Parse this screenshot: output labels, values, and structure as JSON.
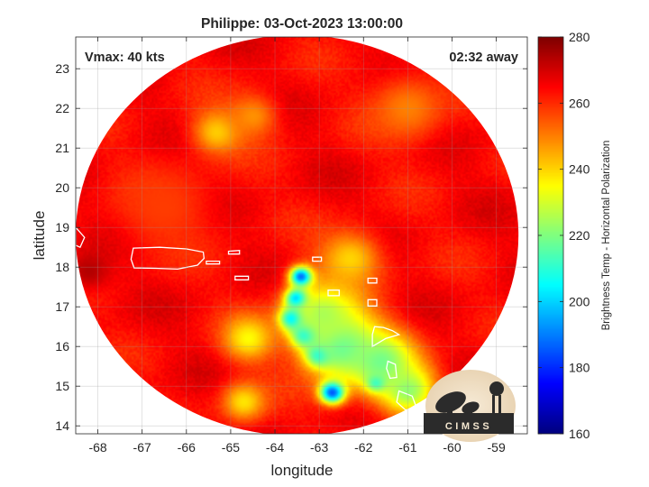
{
  "chart_data": {
    "type": "heatmap",
    "title": "Philippe: 03-Oct-2023 13:00:00",
    "xlabel": "longitude",
    "ylabel": "latitude",
    "xlim": [
      -68.5,
      -58.3
    ],
    "ylim": [
      13.8,
      23.8
    ],
    "x_ticks": [
      -68,
      -67,
      -66,
      -65,
      -64,
      -63,
      -62,
      -61,
      -60,
      -59
    ],
    "y_ticks": [
      14,
      15,
      16,
      17,
      18,
      19,
      20,
      21,
      22,
      23
    ],
    "grid": true,
    "annotations": {
      "vmax": "Vmax: 40 kts",
      "time_away": "02:32 away"
    },
    "colorbar": {
      "label": "Brightness Temp - Horizontal Polarization",
      "range": [
        160,
        280
      ],
      "ticks": [
        160,
        180,
        200,
        220,
        240,
        260,
        280
      ],
      "colormap": "jet"
    },
    "swath": {
      "center_lon": -63.5,
      "center_lat": 18.8,
      "radius_deg_lon": 5.0,
      "radius_deg_lat": 5.05
    },
    "background_value": 265,
    "features": [
      {
        "lon": -63.4,
        "lat": 17.75,
        "value": 175,
        "spread": 0.18
      },
      {
        "lon": -63.5,
        "lat": 17.2,
        "value": 178,
        "spread": 0.18
      },
      {
        "lon": -63.6,
        "lat": 16.7,
        "value": 182,
        "spread": 0.2
      },
      {
        "lon": -63.3,
        "lat": 16.3,
        "value": 185,
        "spread": 0.22
      },
      {
        "lon": -63.0,
        "lat": 15.8,
        "value": 192,
        "spread": 0.2
      },
      {
        "lon": -62.7,
        "lat": 14.85,
        "value": 178,
        "spread": 0.2
      },
      {
        "lon": -61.7,
        "lat": 15.1,
        "value": 190,
        "spread": 0.15
      },
      {
        "lon": -62.5,
        "lat": 16.0,
        "value": 215,
        "spread": 0.6
      },
      {
        "lon": -61.6,
        "lat": 15.6,
        "value": 218,
        "spread": 0.55
      },
      {
        "lon": -62.9,
        "lat": 16.8,
        "value": 225,
        "spread": 0.6
      },
      {
        "lon": -61.0,
        "lat": 14.9,
        "value": 222,
        "spread": 0.45
      },
      {
        "lon": -64.6,
        "lat": 16.2,
        "value": 235,
        "spread": 0.4
      },
      {
        "lon": -64.7,
        "lat": 14.6,
        "value": 238,
        "spread": 0.35
      },
      {
        "lon": -62.3,
        "lat": 18.2,
        "value": 240,
        "spread": 0.5
      },
      {
        "lon": -65.3,
        "lat": 21.4,
        "value": 240,
        "spread": 0.4
      },
      {
        "lon": -64.5,
        "lat": 21.8,
        "value": 248,
        "spread": 0.4
      },
      {
        "lon": -61.0,
        "lat": 22.0,
        "value": 250,
        "spread": 0.6
      },
      {
        "lon": -66.5,
        "lat": 19.5,
        "value": 258,
        "spread": 0.8
      },
      {
        "lon": -68.2,
        "lat": 17.9,
        "value": 274,
        "spread": 0.35
      }
    ],
    "coastlines": [
      {
        "name": "puerto-rico",
        "points": [
          [
            -67.2,
            18.48
          ],
          [
            -66.6,
            18.5
          ],
          [
            -66.0,
            18.46
          ],
          [
            -65.62,
            18.38
          ],
          [
            -65.6,
            18.22
          ],
          [
            -65.75,
            18.05
          ],
          [
            -66.2,
            17.95
          ],
          [
            -66.7,
            17.97
          ],
          [
            -67.18,
            17.98
          ],
          [
            -67.25,
            18.2
          ]
        ]
      },
      {
        "name": "hispaniola-tip",
        "points": [
          [
            -68.5,
            19.0
          ],
          [
            -68.3,
            18.75
          ],
          [
            -68.4,
            18.5
          ],
          [
            -68.5,
            18.55
          ]
        ]
      },
      {
        "name": "vieques",
        "points": [
          [
            -65.55,
            18.15
          ],
          [
            -65.25,
            18.15
          ],
          [
            -65.25,
            18.08
          ],
          [
            -65.55,
            18.08
          ]
        ]
      },
      {
        "name": "virgin-islands",
        "points": [
          [
            -65.05,
            18.4
          ],
          [
            -64.8,
            18.42
          ],
          [
            -64.8,
            18.33
          ],
          [
            -65.05,
            18.33
          ]
        ]
      },
      {
        "name": "anguilla",
        "points": [
          [
            -63.15,
            18.25
          ],
          [
            -62.95,
            18.25
          ],
          [
            -62.95,
            18.15
          ],
          [
            -63.15,
            18.15
          ]
        ]
      },
      {
        "name": "st-croix",
        "points": [
          [
            -64.9,
            17.77
          ],
          [
            -64.6,
            17.77
          ],
          [
            -64.6,
            17.68
          ],
          [
            -64.9,
            17.68
          ]
        ]
      },
      {
        "name": "antigua",
        "points": [
          [
            -61.9,
            17.18
          ],
          [
            -61.7,
            17.18
          ],
          [
            -61.7,
            17.02
          ],
          [
            -61.9,
            17.02
          ]
        ]
      },
      {
        "name": "st-kitts",
        "points": [
          [
            -62.8,
            17.42
          ],
          [
            -62.55,
            17.42
          ],
          [
            -62.55,
            17.28
          ],
          [
            -62.8,
            17.28
          ]
        ]
      },
      {
        "name": "barbuda",
        "points": [
          [
            -61.9,
            17.72
          ],
          [
            -61.7,
            17.72
          ],
          [
            -61.7,
            17.6
          ],
          [
            -61.9,
            17.6
          ]
        ]
      },
      {
        "name": "guadeloupe",
        "points": [
          [
            -61.75,
            16.5
          ],
          [
            -61.55,
            16.48
          ],
          [
            -61.35,
            16.4
          ],
          [
            -61.2,
            16.3
          ],
          [
            -61.5,
            16.2
          ],
          [
            -61.8,
            16.0
          ],
          [
            -61.8,
            16.3
          ]
        ]
      },
      {
        "name": "dominica",
        "points": [
          [
            -61.45,
            15.63
          ],
          [
            -61.28,
            15.55
          ],
          [
            -61.25,
            15.22
          ],
          [
            -61.4,
            15.2
          ],
          [
            -61.48,
            15.45
          ]
        ]
      },
      {
        "name": "martinique",
        "points": [
          [
            -61.2,
            14.88
          ],
          [
            -60.9,
            14.75
          ],
          [
            -60.8,
            14.45
          ],
          [
            -61.05,
            14.4
          ],
          [
            -61.25,
            14.6
          ]
        ]
      },
      {
        "name": "st-lucia",
        "points": [
          [
            -61.05,
            14.1
          ],
          [
            -60.9,
            14.1
          ],
          [
            -60.88,
            13.8
          ],
          [
            -61.08,
            13.8
          ]
        ]
      }
    ]
  }
}
